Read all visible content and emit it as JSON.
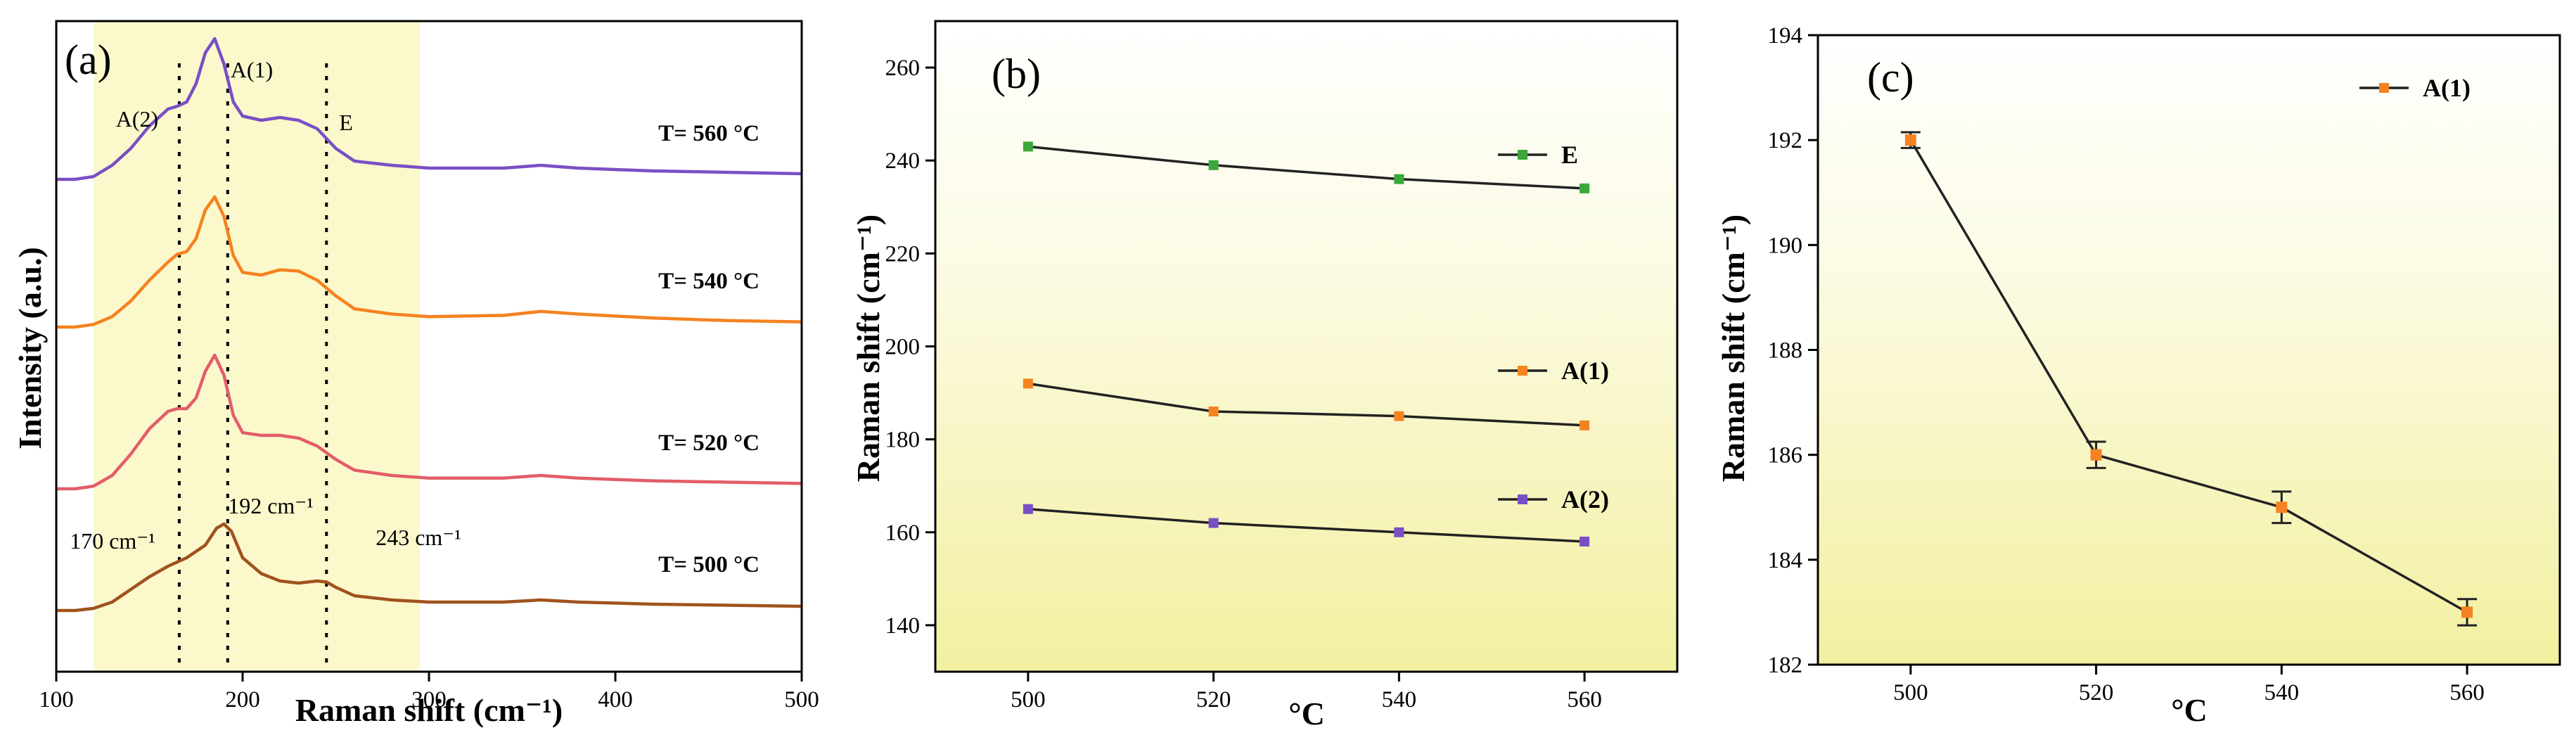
{
  "chart_data": [
    {
      "panel": "(a)",
      "type": "line",
      "xlabel": "Raman shift (cm⁻¹)",
      "ylabel": "Intensity (a.u.)",
      "xlim": [
        100,
        500
      ],
      "xticks": [
        100,
        200,
        300,
        400,
        500
      ],
      "shaded_range": [
        120,
        295
      ],
      "dashed_lines": [
        {
          "x": 166,
          "label": "A(2)"
        },
        {
          "x": 192,
          "label": "A(1)"
        },
        {
          "x": 245,
          "label": "E"
        }
      ],
      "peak_annotations": [
        {
          "x": 170,
          "label": "170 cm⁻¹"
        },
        {
          "x": 192,
          "label": "192 cm⁻¹"
        },
        {
          "x": 243,
          "label": "243 cm⁻¹"
        }
      ],
      "series": [
        {
          "name": "T= 560 °C",
          "color": "#7a4fc3",
          "offset": 3,
          "points": [
            [
              100,
              0.0
            ],
            [
              110,
              0.0
            ],
            [
              120,
              0.02
            ],
            [
              130,
              0.1
            ],
            [
              140,
              0.22
            ],
            [
              150,
              0.38
            ],
            [
              160,
              0.5
            ],
            [
              165,
              0.52
            ],
            [
              170,
              0.55
            ],
            [
              175,
              0.68
            ],
            [
              180,
              0.9
            ],
            [
              185,
              1.0
            ],
            [
              190,
              0.82
            ],
            [
              195,
              0.55
            ],
            [
              200,
              0.45
            ],
            [
              210,
              0.42
            ],
            [
              220,
              0.44
            ],
            [
              230,
              0.42
            ],
            [
              240,
              0.36
            ],
            [
              250,
              0.22
            ],
            [
              260,
              0.13
            ],
            [
              280,
              0.1
            ],
            [
              300,
              0.08
            ],
            [
              340,
              0.08
            ],
            [
              360,
              0.1
            ],
            [
              380,
              0.08
            ],
            [
              420,
              0.06
            ],
            [
              460,
              0.05
            ],
            [
              500,
              0.04
            ]
          ]
        },
        {
          "name": "T= 540 °C",
          "color": "#f58220",
          "offset": 2,
          "points": [
            [
              100,
              0.0
            ],
            [
              110,
              0.0
            ],
            [
              120,
              0.02
            ],
            [
              130,
              0.08
            ],
            [
              140,
              0.2
            ],
            [
              150,
              0.36
            ],
            [
              160,
              0.5
            ],
            [
              165,
              0.56
            ],
            [
              170,
              0.58
            ],
            [
              175,
              0.68
            ],
            [
              180,
              0.9
            ],
            [
              185,
              1.0
            ],
            [
              190,
              0.85
            ],
            [
              195,
              0.55
            ],
            [
              200,
              0.42
            ],
            [
              210,
              0.4
            ],
            [
              220,
              0.44
            ],
            [
              230,
              0.43
            ],
            [
              240,
              0.36
            ],
            [
              250,
              0.24
            ],
            [
              260,
              0.14
            ],
            [
              280,
              0.1
            ],
            [
              300,
              0.08
            ],
            [
              340,
              0.09
            ],
            [
              360,
              0.12
            ],
            [
              380,
              0.1
            ],
            [
              420,
              0.07
            ],
            [
              460,
              0.05
            ],
            [
              500,
              0.04
            ]
          ]
        },
        {
          "name": "T= 520 °C",
          "color": "#e35d6a",
          "offset": 1,
          "points": [
            [
              100,
              0.0
            ],
            [
              110,
              0.0
            ],
            [
              120,
              0.02
            ],
            [
              130,
              0.1
            ],
            [
              140,
              0.26
            ],
            [
              150,
              0.45
            ],
            [
              160,
              0.58
            ],
            [
              165,
              0.6
            ],
            [
              170,
              0.6
            ],
            [
              175,
              0.68
            ],
            [
              180,
              0.88
            ],
            [
              185,
              1.0
            ],
            [
              190,
              0.85
            ],
            [
              195,
              0.55
            ],
            [
              200,
              0.42
            ],
            [
              210,
              0.4
            ],
            [
              220,
              0.4
            ],
            [
              230,
              0.38
            ],
            [
              240,
              0.32
            ],
            [
              250,
              0.22
            ],
            [
              260,
              0.14
            ],
            [
              280,
              0.1
            ],
            [
              300,
              0.08
            ],
            [
              340,
              0.08
            ],
            [
              360,
              0.1
            ],
            [
              380,
              0.08
            ],
            [
              420,
              0.06
            ],
            [
              460,
              0.05
            ],
            [
              500,
              0.04
            ]
          ]
        },
        {
          "name": "T= 500 °C",
          "color": "#a0521d",
          "offset": 0,
          "points": [
            [
              100,
              0.0
            ],
            [
              110,
              0.0
            ],
            [
              120,
              0.02
            ],
            [
              130,
              0.08
            ],
            [
              140,
              0.2
            ],
            [
              150,
              0.32
            ],
            [
              160,
              0.42
            ],
            [
              170,
              0.5
            ],
            [
              180,
              0.62
            ],
            [
              186,
              0.78
            ],
            [
              190,
              0.82
            ],
            [
              194,
              0.75
            ],
            [
              200,
              0.5
            ],
            [
              210,
              0.35
            ],
            [
              220,
              0.28
            ],
            [
              230,
              0.26
            ],
            [
              240,
              0.28
            ],
            [
              245,
              0.27
            ],
            [
              250,
              0.22
            ],
            [
              260,
              0.14
            ],
            [
              280,
              0.1
            ],
            [
              300,
              0.08
            ],
            [
              340,
              0.08
            ],
            [
              360,
              0.1
            ],
            [
              380,
              0.08
            ],
            [
              420,
              0.06
            ],
            [
              460,
              0.05
            ],
            [
              500,
              0.04
            ]
          ]
        }
      ]
    },
    {
      "panel": "(b)",
      "type": "line",
      "xlabel": "°C",
      "ylabel": "Raman shift (cm⁻¹)",
      "xlim": [
        490,
        570
      ],
      "ylim": [
        130,
        270
      ],
      "xticks": [
        500,
        520,
        540,
        560
      ],
      "yticks": [
        140,
        160,
        180,
        200,
        220,
        240,
        260
      ],
      "series": [
        {
          "name": "E",
          "color": "#3aa83a",
          "x": [
            500,
            520,
            540,
            560
          ],
          "values": [
            243,
            239,
            236,
            234
          ]
        },
        {
          "name": "A(1)",
          "color": "#f58220",
          "x": [
            500,
            520,
            540,
            560
          ],
          "values": [
            192,
            186,
            185,
            183
          ]
        },
        {
          "name": "A(2)",
          "color": "#7a4fc3",
          "x": [
            500,
            520,
            540,
            560
          ],
          "values": [
            165,
            162,
            160,
            158
          ]
        }
      ]
    },
    {
      "panel": "(c)",
      "type": "line",
      "xlabel": "°C",
      "ylabel": "Raman shift (cm⁻¹)",
      "xlim": [
        490,
        570
      ],
      "ylim": [
        182,
        194
      ],
      "xticks": [
        500,
        520,
        540,
        560
      ],
      "yticks": [
        182,
        184,
        186,
        188,
        190,
        192,
        194
      ],
      "series": [
        {
          "name": "A(1)",
          "color": "#f58220",
          "x": [
            500,
            520,
            540,
            560
          ],
          "values": [
            192,
            186,
            185,
            183
          ],
          "errors": [
            0.15,
            0.25,
            0.3,
            0.25
          ]
        }
      ]
    }
  ]
}
